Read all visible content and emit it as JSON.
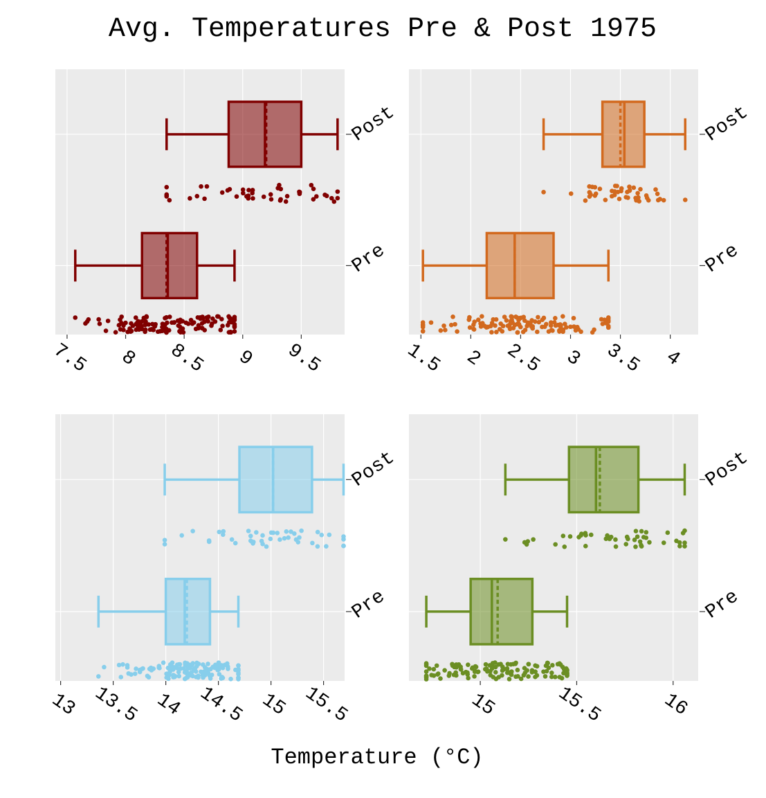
{
  "chart_data": {
    "title": "Avg. Temperatures Pre & Post 1975",
    "xlabel": "Temperature (°C)",
    "panels": [
      {
        "type": "box",
        "color": "#800000",
        "xticks": [
          7.5,
          8,
          8.5,
          9,
          9.5
        ],
        "tick_labels": [
          "7.5",
          "8",
          "8.5",
          "9",
          "9.5"
        ],
        "xlim": [
          7.4,
          9.87
        ],
        "groups": [
          {
            "label": "Post",
            "whisker_low": 8.35,
            "q1": 8.88,
            "median": 9.19,
            "mean": 9.2,
            "q3": 9.5,
            "whisker_high": 9.81
          },
          {
            "label": "Pre",
            "whisker_low": 7.57,
            "q1": 8.14,
            "median": 8.36,
            "mean": 8.35,
            "q3": 8.61,
            "whisker_high": 8.93
          }
        ]
      },
      {
        "type": "box",
        "color": "#d2691e",
        "xticks": [
          1.5,
          2,
          2.5,
          3,
          3.5,
          4
        ],
        "tick_labels": [
          "1.5",
          "2",
          "2.5",
          "3",
          "3.5",
          "4"
        ],
        "xlim": [
          1.38,
          4.28
        ],
        "groups": [
          {
            "label": "Post",
            "whisker_low": 2.73,
            "q1": 3.32,
            "median": 3.54,
            "mean": 3.5,
            "q3": 3.74,
            "whisker_high": 4.15
          },
          {
            "label": "Pre",
            "whisker_low": 1.52,
            "q1": 2.16,
            "median": 2.44,
            "mean": 2.44,
            "q3": 2.83,
            "whisker_high": 3.38
          }
        ]
      },
      {
        "type": "box",
        "color": "#87ceeb",
        "xticks": [
          13,
          13.5,
          14,
          14.5,
          15,
          15.5
        ],
        "tick_labels": [
          "13",
          "13.5",
          "14",
          "14.5",
          "15",
          "15.5"
        ],
        "xlim": [
          12.95,
          15.7
        ],
        "groups": [
          {
            "label": "Post",
            "whisker_low": 13.99,
            "q1": 14.7,
            "median": 15.02,
            "mean": 15.02,
            "q3": 15.39,
            "whisker_high": 15.69
          },
          {
            "label": "Pre",
            "whisker_low": 13.36,
            "q1": 14.0,
            "median": 14.18,
            "mean": 14.2,
            "q3": 14.42,
            "whisker_high": 14.69
          }
        ]
      },
      {
        "type": "box",
        "color": "#6b8e23",
        "xticks": [
          15,
          15.5,
          16
        ],
        "tick_labels": [
          "15",
          "15.5",
          "16"
        ],
        "xlim": [
          14.63,
          16.13
        ],
        "groups": [
          {
            "label": "Post",
            "whisker_low": 15.13,
            "q1": 15.46,
            "median": 15.6,
            "mean": 15.62,
            "q3": 15.82,
            "whisker_high": 16.06
          },
          {
            "label": "Pre",
            "whisker_low": 14.72,
            "q1": 14.95,
            "median": 15.06,
            "mean": 15.09,
            "q3": 15.27,
            "whisker_high": 15.45
          }
        ]
      }
    ]
  }
}
